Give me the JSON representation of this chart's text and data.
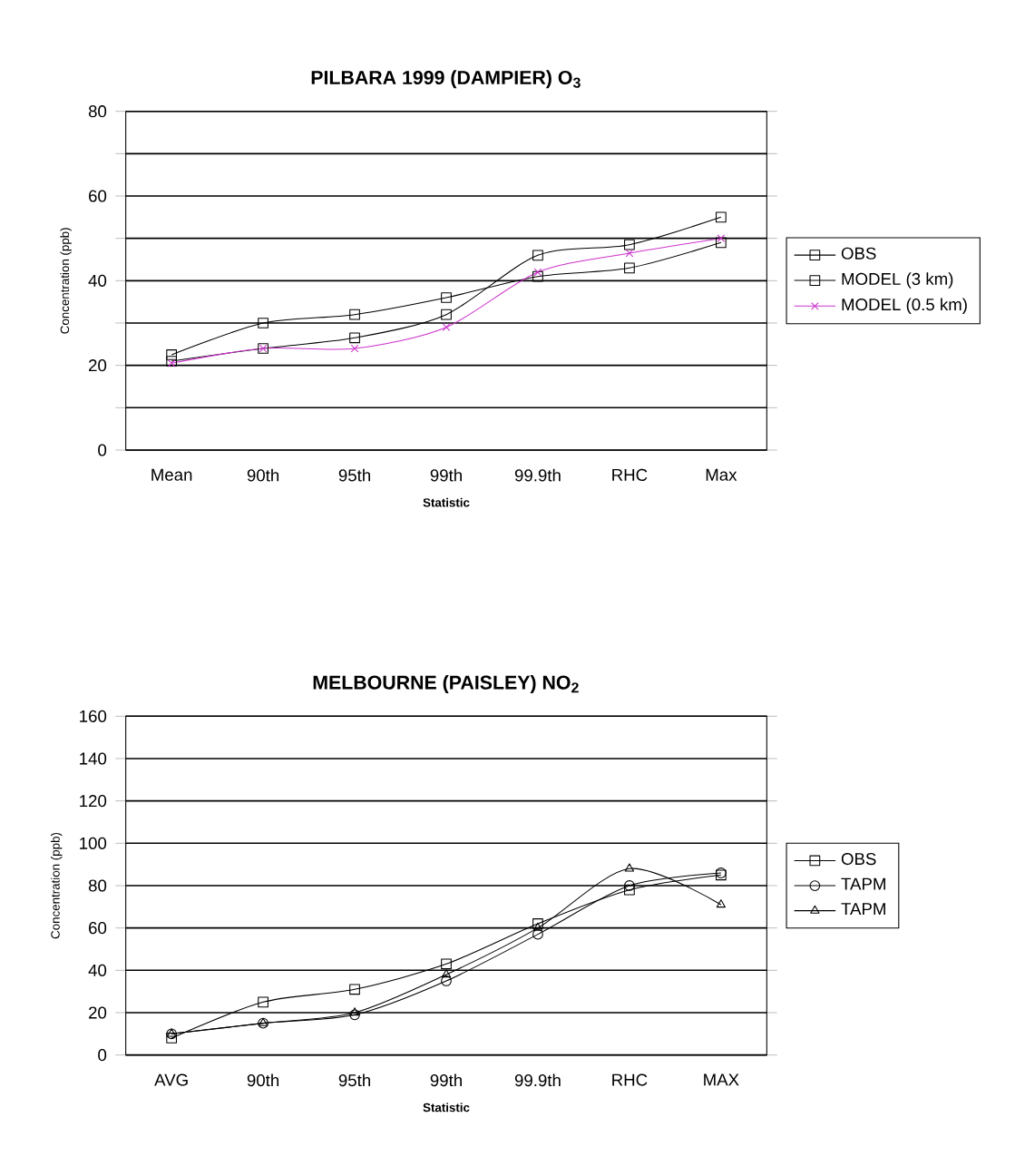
{
  "chart_data": [
    {
      "type": "line",
      "title": "PILBARA 1999  (DAMPIER)    O$_{3}$",
      "xlabel": "Statistic",
      "ylabel": "Concentration (ppb)",
      "categories": [
        "Mean",
        "90th",
        "95th",
        "99th",
        "99.9th",
        "RHC",
        "Max"
      ],
      "series": [
        {
          "name": "OBS",
          "color": "#000000",
          "marker": "square",
          "values": [
            22.5,
            30,
            32,
            36,
            41,
            43,
            49
          ]
        },
        {
          "name": "MODEL (3 km)",
          "color": "#000000",
          "marker": "square",
          "values": [
            21,
            24,
            26.5,
            32,
            46,
            48.5,
            55
          ]
        },
        {
          "name": "MODEL (0.5 km)",
          "color": "#cc33cc",
          "marker": "cross",
          "values": [
            20.5,
            24,
            24,
            29,
            42,
            46.5,
            50
          ]
        }
      ],
      "ylim": [
        0,
        80
      ],
      "yticks": [
        0,
        {
          "value": 10,
          "label": null
        },
        20,
        {
          "value": 30,
          "label": null
        },
        40,
        {
          "value": 50,
          "label": null
        },
        60,
        {
          "value": 70,
          "label": null
        },
        80
      ],
      "grid": "y",
      "legend": "right",
      "line_style": "solid"
    },
    {
      "type": "line",
      "title": "MELBOURNE (PAISLEY)    NO$_{2}$",
      "xlabel": "Statistic",
      "ylabel": "Concentration (ppb)",
      "categories": [
        "AVG",
        "90th",
        "95th",
        "99th",
        "99.9th",
        "RHC",
        "MAX"
      ],
      "series": [
        {
          "name": "OBS",
          "color": "#000000",
          "marker": "square",
          "values": [
            8,
            25,
            31,
            43,
            62,
            78,
            85
          ]
        },
        {
          "name": "TAPM",
          "color": "#000000",
          "marker": "circle",
          "values": [
            10,
            15,
            19,
            35,
            57,
            80,
            86
          ]
        },
        {
          "name": "TAPM",
          "color": "#000000",
          "marker": "triangle",
          "values": [
            10,
            15,
            20,
            38,
            60,
            88,
            71
          ]
        }
      ],
      "ylim": [
        0,
        160
      ],
      "yticks": [
        0,
        20,
        40,
        60,
        80,
        100,
        120,
        140,
        160
      ],
      "grid": "y",
      "legend": "right",
      "line_style": "solid"
    }
  ]
}
